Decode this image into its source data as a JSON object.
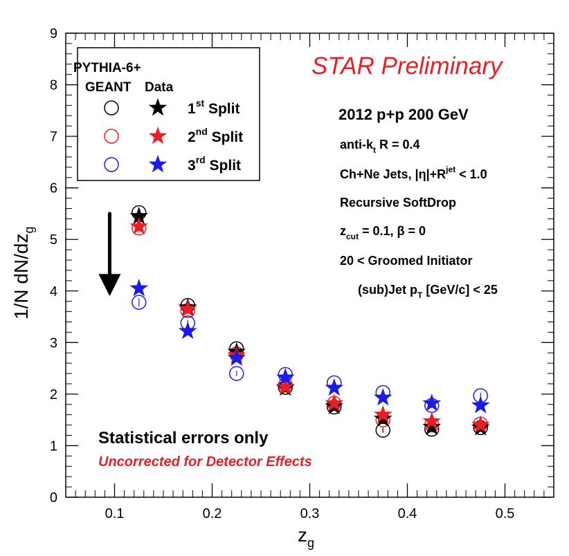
{
  "chart_data": {
    "type": "scatter",
    "title": "",
    "xlabel": "z",
    "xlabel_sub": "g",
    "ylabel": "1/N dN/dz",
    "ylabel_sub": "g",
    "xlim": [
      0.05,
      0.55
    ],
    "ylim": [
      0,
      9
    ],
    "x_ticks": [
      "0.1",
      "0.2",
      "0.3",
      "0.4",
      "0.5"
    ],
    "y_ticks": [
      "0",
      "1",
      "2",
      "3",
      "4",
      "5",
      "6",
      "7",
      "8",
      "9"
    ],
    "x_tick_values": [
      0.1,
      0.2,
      0.3,
      0.4,
      0.5
    ],
    "y_tick_values": [
      0,
      1,
      2,
      3,
      4,
      5,
      6,
      7,
      8,
      9
    ],
    "grid": false,
    "legend": {
      "position": "top-left",
      "header_line1": "PYTHIA-6+",
      "header_line2": "GEANT",
      "header_data": "Data",
      "rows": [
        {
          "base": "1",
          "sup": "st",
          "suffix": " Split",
          "color": "#000000"
        },
        {
          "base": "2",
          "sup": "nd",
          "suffix": " Split",
          "color": "#ee1c25"
        },
        {
          "base": "3",
          "sup": "rd",
          "suffix": " Split",
          "color": "#1a1aee"
        }
      ]
    },
    "x": [
      0.125,
      0.175,
      0.225,
      0.275,
      0.325,
      0.375,
      0.425,
      0.475
    ],
    "series": [
      {
        "group": "PYTHIA-6+GEANT",
        "split": 1,
        "marker": "open-circle",
        "color": "#000000",
        "values": [
          5.52,
          3.72,
          2.88,
          2.13,
          1.75,
          1.3,
          1.32,
          1.35
        ]
      },
      {
        "group": "PYTHIA-6+GEANT",
        "split": 2,
        "marker": "open-circle",
        "color": "#ee1c25",
        "values": [
          5.22,
          3.62,
          2.78,
          2.18,
          1.82,
          1.5,
          1.4,
          1.42
        ]
      },
      {
        "group": "PYTHIA-6+GEANT",
        "split": 3,
        "marker": "open-circle",
        "color": "#1a1aee",
        "values": [
          3.78,
          3.38,
          2.4,
          2.38,
          2.22,
          2.03,
          1.78,
          1.97
        ]
      },
      {
        "group": "Data",
        "split": 1,
        "marker": "star",
        "color": "#000000",
        "values": [
          5.45,
          3.68,
          2.82,
          2.12,
          1.76,
          1.52,
          1.36,
          1.35
        ]
      },
      {
        "group": "Data",
        "split": 2,
        "marker": "star",
        "color": "#ee1c25",
        "values": [
          5.25,
          3.65,
          2.75,
          2.14,
          1.82,
          1.6,
          1.47,
          1.4
        ]
      },
      {
        "group": "Data",
        "split": 3,
        "marker": "star",
        "color": "#1a1aee",
        "values": [
          4.05,
          3.22,
          2.7,
          2.32,
          2.12,
          1.93,
          1.82,
          1.78
        ]
      }
    ],
    "error_bar_halfwidth": [
      0.08,
      0.06,
      0.05,
      0.05,
      0.05,
      0.05,
      0.05,
      0.06
    ],
    "arrow": {
      "x": 0.095,
      "y_from": 5.5,
      "y_to": 3.9,
      "color": "#000000"
    },
    "annotations": {
      "preliminary": "STAR Preliminary",
      "dataset": "2012 p+p 200 GeV",
      "algo_prefix": "anti-k",
      "algo_sub": "t",
      "algo_suffix": " R = 0.4",
      "jets_prefix": "Ch+Ne Jets, |η|+R",
      "jets_sup": "jet",
      "jets_suffix": " < 1.0",
      "softdrop": "Recursive SoftDrop",
      "zcut_prefix": "z",
      "zcut_sub": "cut",
      "zcut_suffix": " = 0.1,  β = 0",
      "initiator_line": "20 < Groomed Initiator",
      "pt_prefix": "(sub)Jet p",
      "pt_sub": "T",
      "pt_suffix": " [GeV/c] < 25",
      "stat_errors": "Statistical errors only",
      "uncorrected": "Uncorrected for Detector Effects",
      "red_color": "#ee1c25"
    }
  }
}
